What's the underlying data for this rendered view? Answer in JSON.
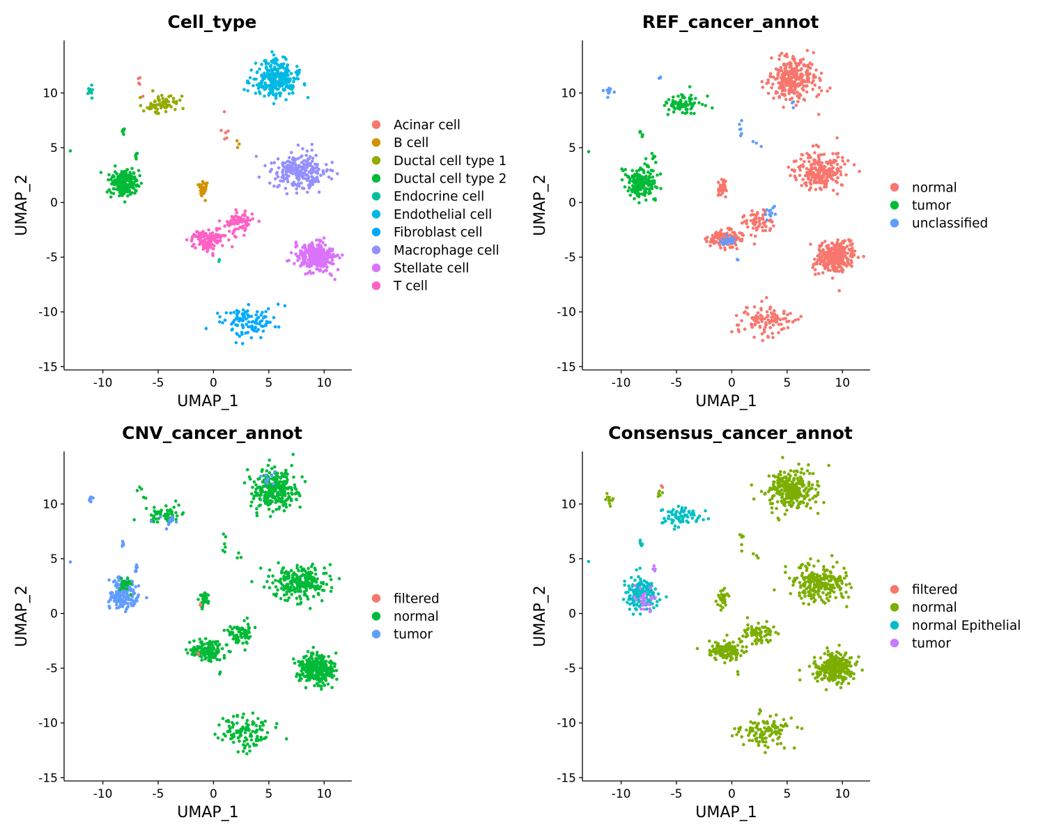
{
  "colors": {
    "Acinar cell": "#F8766D",
    "B cell": "#D39200",
    "Ductal cell type 1": "#93AA00",
    "Ductal cell type 2": "#00BA38",
    "Endocrine cell": "#00C19F",
    "Endothelial cell": "#00B9E3",
    "Fibroblast cell": "#00A9FF",
    "Macrophage cell": "#9590FF",
    "Stellate cell": "#DB72FB",
    "T cell": "#FF61C3"
  },
  "chart_data": [
    {
      "type": "scatter",
      "title": "Cell_type",
      "xlabel": "UMAP_1",
      "ylabel": "UMAP_2",
      "xlim": [
        -13.5,
        12.5
      ],
      "ylim": [
        -15.3,
        14.8
      ],
      "xticks": [
        -10,
        -5,
        0,
        5,
        10
      ],
      "yticks": [
        -15,
        -10,
        -5,
        0,
        5,
        10
      ],
      "grid": false,
      "legend_position": "right",
      "legend": [
        {
          "label": "Acinar cell",
          "color": "#F8766D"
        },
        {
          "label": "B cell",
          "color": "#D39200"
        },
        {
          "label": "Ductal cell type 1",
          "color": "#93AA00"
        },
        {
          "label": "Ductal cell type 2",
          "color": "#00BA38"
        },
        {
          "label": "Endocrine cell",
          "color": "#00C19F"
        },
        {
          "label": "Endothelial cell",
          "color": "#00B9E3"
        },
        {
          "label": "Fibroblast cell",
          "color": "#00A9FF"
        },
        {
          "label": "Macrophage cell",
          "color": "#9590FF"
        },
        {
          "label": "Stellate cell",
          "color": "#DB72FB"
        },
        {
          "label": "T cell",
          "color": "#FF61C3"
        }
      ],
      "clusters": [
        {
          "label": "Endothelial cell",
          "cx": 5.5,
          "cy": 11.3,
          "sx": 1.4,
          "sy": 1.2,
          "n": 280
        },
        {
          "label": "Macrophage cell",
          "cx": 7.8,
          "cy": 2.8,
          "sx": 1.7,
          "sy": 1.1,
          "n": 230
        },
        {
          "label": "Stellate cell",
          "cx": 9.3,
          "cy": -5.0,
          "sx": 1.1,
          "sy": 0.9,
          "n": 300
        },
        {
          "label": "Fibroblast cell",
          "cx": 3.0,
          "cy": -10.8,
          "sx": 1.7,
          "sy": 1.0,
          "n": 110
        },
        {
          "label": "Ductal cell type 2",
          "cx": -8.2,
          "cy": 1.8,
          "sx": 0.9,
          "sy": 0.9,
          "n": 190
        },
        {
          "label": "Ductal cell type 1",
          "cx": -4.5,
          "cy": 9.0,
          "sx": 1.2,
          "sy": 0.6,
          "n": 70
        },
        {
          "label": "B cell",
          "cx": -0.9,
          "cy": 1.3,
          "sx": 0.3,
          "sy": 0.5,
          "n": 35
        },
        {
          "label": "T cell",
          "cx": -0.5,
          "cy": -3.4,
          "sx": 1.0,
          "sy": 0.6,
          "n": 130
        },
        {
          "label": "T cell",
          "cx": 2.5,
          "cy": -1.8,
          "sx": 0.9,
          "sy": 0.7,
          "n": 70
        },
        {
          "label": "Endocrine cell",
          "cx": -11.1,
          "cy": 10.3,
          "sx": 0.25,
          "sy": 0.4,
          "n": 10
        },
        {
          "label": "Ductal cell type 2",
          "cx": -8.2,
          "cy": 6.4,
          "sx": 0.1,
          "sy": 0.3,
          "n": 6
        },
        {
          "label": "Ductal cell type 2",
          "cx": -7.0,
          "cy": 4.1,
          "sx": 0.1,
          "sy": 0.3,
          "n": 6
        },
        {
          "label": "Ductal cell type 2",
          "cx": -12.9,
          "cy": 4.7,
          "sx": 0.05,
          "sy": 0.05,
          "n": 1
        },
        {
          "label": "Acinar cell",
          "cx": -6.5,
          "cy": 11.0,
          "sx": 0.3,
          "sy": 0.5,
          "n": 5
        },
        {
          "label": "Acinar cell",
          "cx": 0.9,
          "cy": 6.8,
          "sx": 0.2,
          "sy": 0.8,
          "n": 6
        },
        {
          "label": "B cell",
          "cx": 2.3,
          "cy": 5.3,
          "sx": 0.3,
          "sy": 0.2,
          "n": 3
        },
        {
          "label": "Endocrine cell",
          "cx": 0.5,
          "cy": -5.4,
          "sx": 0.1,
          "sy": 0.2,
          "n": 2
        }
      ]
    },
    {
      "type": "scatter",
      "title": "REF_cancer_annot",
      "xlabel": "UMAP_1",
      "ylabel": "UMAP_2",
      "xlim": [
        -13.5,
        12.5
      ],
      "ylim": [
        -15.3,
        14.8
      ],
      "xticks": [
        -10,
        -5,
        0,
        5,
        10
      ],
      "yticks": [
        -15,
        -10,
        -5,
        0,
        5,
        10
      ],
      "grid": false,
      "legend_position": "right",
      "legend": [
        {
          "label": "normal",
          "color": "#F8766D"
        },
        {
          "label": "tumor",
          "color": "#00BA38"
        },
        {
          "label": "unclassified",
          "color": "#619CFF"
        }
      ],
      "clusters": [
        {
          "label": "normal",
          "cx": 5.5,
          "cy": 11.3,
          "sx": 1.4,
          "sy": 1.2,
          "n": 280
        },
        {
          "label": "normal",
          "cx": 7.8,
          "cy": 2.8,
          "sx": 1.7,
          "sy": 1.1,
          "n": 230
        },
        {
          "label": "normal",
          "cx": 9.3,
          "cy": -5.0,
          "sx": 1.1,
          "sy": 0.9,
          "n": 300
        },
        {
          "label": "normal",
          "cx": 3.0,
          "cy": -10.8,
          "sx": 1.7,
          "sy": 1.0,
          "n": 110
        },
        {
          "label": "normal",
          "cx": -0.9,
          "cy": 1.3,
          "sx": 0.3,
          "sy": 0.5,
          "n": 35
        },
        {
          "label": "normal",
          "cx": -0.5,
          "cy": -3.4,
          "sx": 1.0,
          "sy": 0.6,
          "n": 120
        },
        {
          "label": "normal",
          "cx": 2.5,
          "cy": -1.8,
          "sx": 0.9,
          "sy": 0.7,
          "n": 60
        },
        {
          "label": "unclassified",
          "cx": -0.5,
          "cy": -3.6,
          "sx": 0.7,
          "sy": 0.4,
          "n": 18
        },
        {
          "label": "unclassified",
          "cx": 3.4,
          "cy": -0.8,
          "sx": 0.4,
          "sy": 0.3,
          "n": 12
        },
        {
          "label": "unclassified",
          "cx": 5.5,
          "cy": 9.0,
          "sx": 0.4,
          "sy": 0.4,
          "n": 3
        },
        {
          "label": "tumor",
          "cx": -8.2,
          "cy": 1.8,
          "sx": 0.9,
          "sy": 0.9,
          "n": 190
        },
        {
          "label": "tumor",
          "cx": -4.5,
          "cy": 9.0,
          "sx": 1.2,
          "sy": 0.6,
          "n": 70
        },
        {
          "label": "tumor",
          "cx": -8.2,
          "cy": 6.4,
          "sx": 0.1,
          "sy": 0.3,
          "n": 6
        },
        {
          "label": "tumor",
          "cx": -7.0,
          "cy": 4.1,
          "sx": 0.1,
          "sy": 0.3,
          "n": 6
        },
        {
          "label": "tumor",
          "cx": -12.9,
          "cy": 4.7,
          "sx": 0.05,
          "sy": 0.05,
          "n": 1
        },
        {
          "label": "unclassified",
          "cx": -11.1,
          "cy": 10.3,
          "sx": 0.25,
          "sy": 0.4,
          "n": 10
        },
        {
          "label": "unclassified",
          "cx": -6.5,
          "cy": 11.4,
          "sx": 0.1,
          "sy": 0.2,
          "n": 3
        },
        {
          "label": "unclassified",
          "cx": 0.9,
          "cy": 6.8,
          "sx": 0.2,
          "sy": 0.8,
          "n": 6
        },
        {
          "label": "unclassified",
          "cx": 2.3,
          "cy": 5.3,
          "sx": 0.3,
          "sy": 0.2,
          "n": 3
        },
        {
          "label": "unclassified",
          "cx": 0.5,
          "cy": -5.4,
          "sx": 0.1,
          "sy": 0.2,
          "n": 2
        }
      ]
    },
    {
      "type": "scatter",
      "title": "CNV_cancer_annot",
      "xlabel": "UMAP_1",
      "ylabel": "UMAP_2",
      "xlim": [
        -13.5,
        12.5
      ],
      "ylim": [
        -15.3,
        14.8
      ],
      "xticks": [
        -10,
        -5,
        0,
        5,
        10
      ],
      "yticks": [
        -15,
        -10,
        -5,
        0,
        5,
        10
      ],
      "grid": false,
      "legend_position": "right",
      "legend": [
        {
          "label": "filtered",
          "color": "#F8766D"
        },
        {
          "label": "normal",
          "color": "#00BA38"
        },
        {
          "label": "tumor",
          "color": "#619CFF"
        }
      ],
      "clusters": [
        {
          "label": "normal",
          "cx": 5.5,
          "cy": 11.3,
          "sx": 1.4,
          "sy": 1.2,
          "n": 280
        },
        {
          "label": "normal",
          "cx": 7.8,
          "cy": 2.8,
          "sx": 1.7,
          "sy": 1.1,
          "n": 230
        },
        {
          "label": "normal",
          "cx": 9.3,
          "cy": -5.0,
          "sx": 1.1,
          "sy": 0.9,
          "n": 300
        },
        {
          "label": "normal",
          "cx": 3.0,
          "cy": -10.8,
          "sx": 1.7,
          "sy": 1.0,
          "n": 110
        },
        {
          "label": "normal",
          "cx": -0.9,
          "cy": 1.3,
          "sx": 0.3,
          "sy": 0.5,
          "n": 35
        },
        {
          "label": "normal",
          "cx": -0.5,
          "cy": -3.4,
          "sx": 1.0,
          "sy": 0.6,
          "n": 130
        },
        {
          "label": "normal",
          "cx": 2.5,
          "cy": -1.8,
          "sx": 0.9,
          "sy": 0.7,
          "n": 70
        },
        {
          "label": "normal",
          "cx": -4.5,
          "cy": 9.0,
          "sx": 1.2,
          "sy": 0.6,
          "n": 55
        },
        {
          "label": "tumor",
          "cx": -4.0,
          "cy": 8.4,
          "sx": 0.8,
          "sy": 0.3,
          "n": 12
        },
        {
          "label": "tumor",
          "cx": -8.2,
          "cy": 1.8,
          "sx": 0.9,
          "sy": 0.9,
          "n": 170
        },
        {
          "label": "normal",
          "cx": -8.0,
          "cy": 2.6,
          "sx": 0.5,
          "sy": 0.5,
          "n": 25
        },
        {
          "label": "tumor",
          "cx": -11.1,
          "cy": 10.3,
          "sx": 0.25,
          "sy": 0.4,
          "n": 8
        },
        {
          "label": "tumor",
          "cx": -8.2,
          "cy": 6.4,
          "sx": 0.1,
          "sy": 0.3,
          "n": 6
        },
        {
          "label": "tumor",
          "cx": -7.0,
          "cy": 4.1,
          "sx": 0.1,
          "sy": 0.3,
          "n": 6
        },
        {
          "label": "tumor",
          "cx": -12.9,
          "cy": 4.7,
          "sx": 0.05,
          "sy": 0.05,
          "n": 1
        },
        {
          "label": "tumor",
          "cx": 5.0,
          "cy": 12.4,
          "sx": 0.6,
          "sy": 0.4,
          "n": 10
        },
        {
          "label": "normal",
          "cx": -6.5,
          "cy": 11.0,
          "sx": 0.3,
          "sy": 0.5,
          "n": 5
        },
        {
          "label": "normal",
          "cx": 0.9,
          "cy": 6.8,
          "sx": 0.2,
          "sy": 0.8,
          "n": 6
        },
        {
          "label": "normal",
          "cx": 2.3,
          "cy": 5.3,
          "sx": 0.3,
          "sy": 0.2,
          "n": 3
        },
        {
          "label": "normal",
          "cx": 0.5,
          "cy": -5.4,
          "sx": 0.1,
          "sy": 0.2,
          "n": 2
        },
        {
          "label": "filtered",
          "cx": -1.2,
          "cy": 0.7,
          "sx": 0.15,
          "sy": 0.15,
          "n": 2
        },
        {
          "label": "filtered",
          "cx": -1.4,
          "cy": -3.8,
          "sx": 0.15,
          "sy": 0.15,
          "n": 2
        }
      ]
    },
    {
      "type": "scatter",
      "title": "Consensus_cancer_annot",
      "xlabel": "UMAP_1",
      "ylabel": "UMAP_2",
      "xlim": [
        -13.5,
        12.5
      ],
      "ylim": [
        -15.3,
        14.8
      ],
      "xticks": [
        -10,
        -5,
        0,
        5,
        10
      ],
      "yticks": [
        -15,
        -10,
        -5,
        0,
        5,
        10
      ],
      "grid": false,
      "legend_position": "right",
      "legend": [
        {
          "label": "filtered",
          "color": "#F8766D"
        },
        {
          "label": "normal",
          "color": "#7CAE00"
        },
        {
          "label": "normal Epithelial",
          "color": "#00BFC4"
        },
        {
          "label": "tumor",
          "color": "#C77CFF"
        }
      ],
      "clusters": [
        {
          "label": "normal",
          "cx": 5.5,
          "cy": 11.3,
          "sx": 1.4,
          "sy": 1.2,
          "n": 280
        },
        {
          "label": "normal",
          "cx": 7.8,
          "cy": 2.8,
          "sx": 1.7,
          "sy": 1.1,
          "n": 230
        },
        {
          "label": "normal",
          "cx": 9.3,
          "cy": -5.0,
          "sx": 1.1,
          "sy": 0.9,
          "n": 300
        },
        {
          "label": "normal",
          "cx": 3.0,
          "cy": -10.8,
          "sx": 1.7,
          "sy": 1.0,
          "n": 110
        },
        {
          "label": "normal",
          "cx": -0.9,
          "cy": 1.3,
          "sx": 0.3,
          "sy": 0.5,
          "n": 35
        },
        {
          "label": "normal",
          "cx": -0.5,
          "cy": -3.4,
          "sx": 1.0,
          "sy": 0.6,
          "n": 130
        },
        {
          "label": "normal",
          "cx": 2.5,
          "cy": -1.8,
          "sx": 0.9,
          "sy": 0.7,
          "n": 70
        },
        {
          "label": "normal Epithelial",
          "cx": -4.5,
          "cy": 9.0,
          "sx": 1.2,
          "sy": 0.6,
          "n": 70
        },
        {
          "label": "normal Epithelial",
          "cx": -8.2,
          "cy": 1.8,
          "sx": 0.9,
          "sy": 0.9,
          "n": 160
        },
        {
          "label": "tumor",
          "cx": -7.8,
          "cy": 1.5,
          "sx": 0.6,
          "sy": 0.7,
          "n": 30
        },
        {
          "label": "tumor",
          "cx": -7.0,
          "cy": 4.1,
          "sx": 0.1,
          "sy": 0.3,
          "n": 4
        },
        {
          "label": "normal",
          "cx": -11.1,
          "cy": 10.3,
          "sx": 0.25,
          "sy": 0.4,
          "n": 10
        },
        {
          "label": "normal Epithelial",
          "cx": -8.2,
          "cy": 6.4,
          "sx": 0.1,
          "sy": 0.3,
          "n": 6
        },
        {
          "label": "normal Epithelial",
          "cx": -12.9,
          "cy": 4.7,
          "sx": 0.05,
          "sy": 0.05,
          "n": 1
        },
        {
          "label": "normal",
          "cx": -6.5,
          "cy": 11.0,
          "sx": 0.3,
          "sy": 0.5,
          "n": 5
        },
        {
          "label": "normal",
          "cx": 0.9,
          "cy": 6.8,
          "sx": 0.2,
          "sy": 0.8,
          "n": 6
        },
        {
          "label": "normal",
          "cx": 2.3,
          "cy": 5.3,
          "sx": 0.3,
          "sy": 0.2,
          "n": 3
        },
        {
          "label": "normal",
          "cx": 0.5,
          "cy": -5.4,
          "sx": 0.1,
          "sy": 0.2,
          "n": 2
        },
        {
          "label": "filtered",
          "cx": -6.4,
          "cy": 11.5,
          "sx": 0.1,
          "sy": 0.1,
          "n": 2
        }
      ]
    }
  ]
}
